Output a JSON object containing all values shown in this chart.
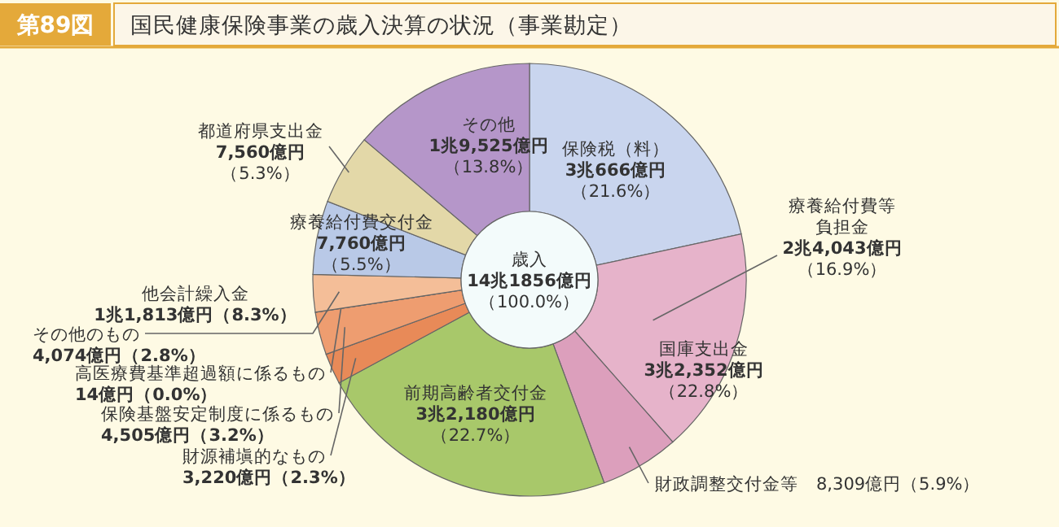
{
  "chart_data": {
    "type": "donut",
    "subtitle": "第89図",
    "title": "国民健康保険事業の歳入決算の状況（事業勘定）",
    "categories": [
      "保険税（料）",
      "療養給付費等負担金",
      "財政調整交付金等",
      "前期高齢者交付金",
      "財源補塡的なもの",
      "保険基盤安定制度に係るもの",
      "高医療費基準超過額に係るもの",
      "その他のもの",
      "療養給付費交付金",
      "都道府県支出金",
      "その他"
    ],
    "values": [
      21.6,
      16.9,
      5.9,
      22.7,
      2.3,
      3.2,
      0.0,
      2.8,
      5.5,
      5.3,
      13.8
    ],
    "colors": [
      "#c9d5ee",
      "#e6b3ca",
      "#dc9fbc",
      "#a8c86a",
      "#e88a58",
      "#ee9d70",
      "#f2b088",
      "#f4be98",
      "#b9c9e7",
      "#e3d8a8",
      "#b596c9"
    ],
    "value_labels": [
      "3兆666億円（21.6%）",
      "2兆4,043億円（16.9%）",
      "8,309億円（5.9%）",
      "3兆2,180億円（22.7%）",
      "3,220億円（2.3%）",
      "4,505億円（3.2%）",
      "14億円（0.0%）",
      "4,074億円（2.8%）",
      "7,760億円（5.5%）",
      "7,560億円（5.3%）",
      "1兆9,525億円（13.8%）"
    ],
    "annotations": [
      "歳入\n14兆1856億円（100.0%）",
      "国庫支出金\n3兆2,352億円（22.8%）",
      "他会計繰入金\n1兆1,813億円（8.3%）"
    ]
  }
}
